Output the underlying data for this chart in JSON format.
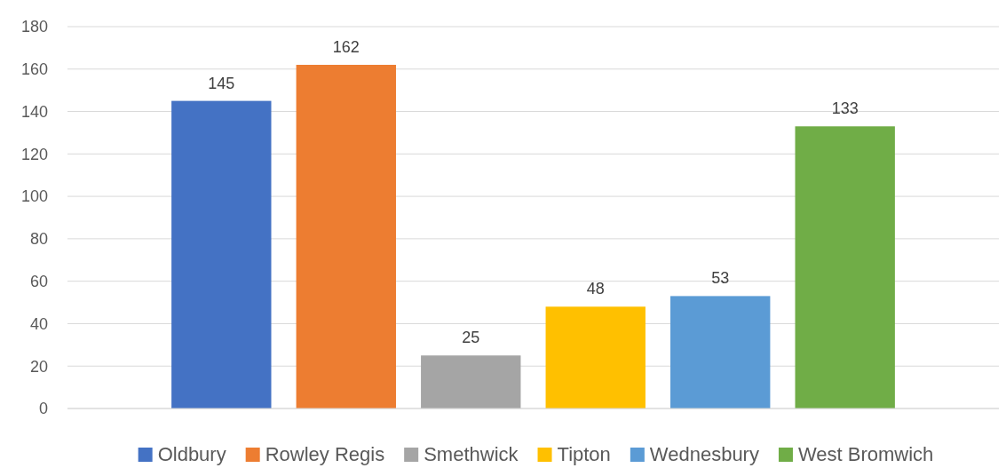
{
  "chart_data": {
    "type": "bar",
    "categories": [
      null
    ],
    "series": [
      {
        "name": "Oldbury",
        "color": "#4472c4",
        "values": [
          145
        ]
      },
      {
        "name": "Rowley Regis",
        "color": "#ed7d31",
        "values": [
          162
        ]
      },
      {
        "name": "Smethwick",
        "color": "#a5a5a5",
        "values": [
          25
        ]
      },
      {
        "name": "Tipton",
        "color": "#ffc000",
        "values": [
          48
        ]
      },
      {
        "name": "Wednesbury",
        "color": "#5b9bd5",
        "values": [
          53
        ]
      },
      {
        "name": "West Bromwich",
        "color": "#70ad47",
        "values": [
          133
        ]
      }
    ],
    "ylim": [
      0,
      180
    ],
    "yticks": [
      0,
      20,
      40,
      60,
      80,
      100,
      120,
      140,
      160,
      180
    ],
    "grid": "y",
    "legend": "bottom",
    "data_labels": true
  }
}
